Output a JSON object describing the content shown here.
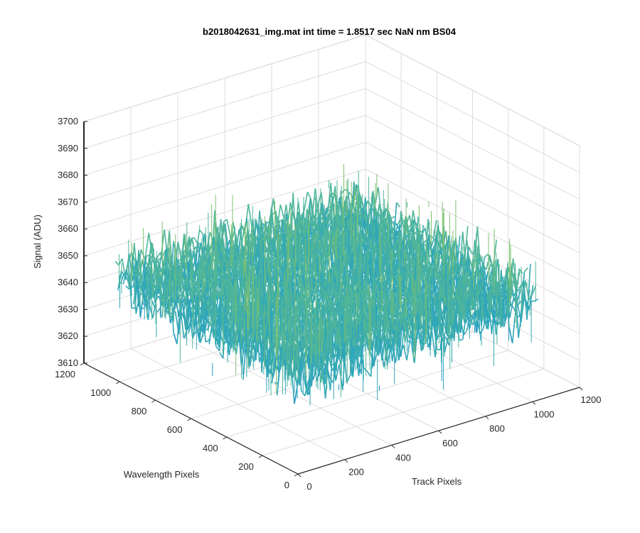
{
  "chart_data": {
    "type": "surface",
    "title": "b2018042631_img.mat int time = 1.8517 sec  NaN nm BS04",
    "xlabel": "Track Pixels",
    "ylabel": "Wavelength Pixels",
    "zlabel": "Signal (ADU)",
    "xlim": [
      0,
      1200
    ],
    "ylim": [
      0,
      1200
    ],
    "zlim": [
      3610,
      3700
    ],
    "x_ticks": [
      0,
      200,
      400,
      600,
      800,
      1000,
      1200
    ],
    "y_ticks": [
      0,
      200,
      400,
      600,
      800,
      1000,
      1200
    ],
    "z_ticks": [
      3610,
      3620,
      3630,
      3640,
      3650,
      3660,
      3670,
      3680,
      3690,
      3700
    ],
    "x_tick_labels": [
      "0",
      "200",
      "400",
      "600",
      "800",
      "1000",
      "1200"
    ],
    "y_tick_labels": [
      "0",
      "200",
      "400",
      "600",
      "800",
      "1000",
      "1200"
    ],
    "z_tick_labels": [
      "3610",
      "3620",
      "3630",
      "3640",
      "3650",
      "3660",
      "3670",
      "3680",
      "3690",
      "3700"
    ],
    "data_extent": {
      "x": [
        0,
        1024
      ],
      "y": [
        0,
        1024
      ]
    },
    "signal_mean": 3648,
    "signal_range": [
      3612,
      3688
    ],
    "grid": true,
    "colormap": [
      "#0072BD",
      "#1f96c6",
      "#30a7b8",
      "#4fb59a",
      "#7cbf6e",
      "#d6bf3a"
    ]
  }
}
